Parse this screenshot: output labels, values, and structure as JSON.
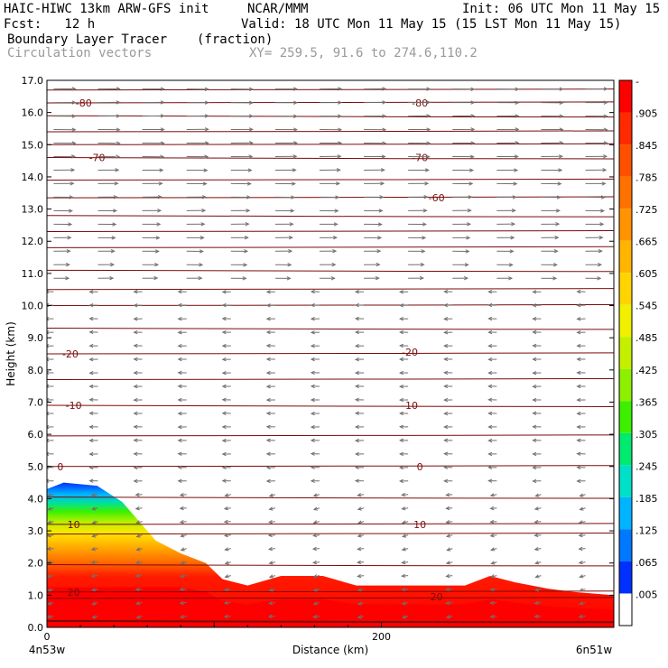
{
  "header": {
    "title_left": "HAIC-HIWC 13km ARW-GFS init",
    "title_center": "NCAR/MMM",
    "init": "Init: 06 UTC Mon 11 May 15",
    "fcst": "Fcst:   12 h",
    "valid": "Valid: 18 UTC Mon 11 May 15 (15 LST Mon 11 May 15)",
    "field_name": "Boundary Layer Tracer",
    "field_units": "(fraction)",
    "vector_name": "Circulation vectors",
    "xy": "XY= 259.5, 91.6 to 274.6,110.2"
  },
  "chart_data": {
    "type": "heatmap",
    "xlabel": "Distance (km)",
    "ylabel": "Height (km)",
    "xlim": [
      0,
      339
    ],
    "ylim": [
      0,
      17
    ],
    "x_ticks": [
      "0",
      "200"
    ],
    "y_ticks": [
      "0.0",
      "1.0",
      "2.0",
      "3.0",
      "4.0",
      "5.0",
      "6.0",
      "7.0",
      "8.0",
      "9.0",
      "10.0",
      "11.0",
      "12.0",
      "13.0",
      "14.0",
      "15.0",
      "16.0",
      "17.0"
    ],
    "x_endpoints": [
      "4n53w",
      "6n51w"
    ],
    "colorbar": {
      "labels": [
        "-",
        ".905",
        ".845",
        ".785",
        ".725",
        ".665",
        ".605",
        ".545",
        ".485",
        ".425",
        ".365",
        ".305",
        ".245",
        ".185",
        ".125",
        ".065",
        ".005"
      ],
      "colors": [
        "#ff0000",
        "#ff2a00",
        "#ff5000",
        "#ff7200",
        "#ff9400",
        "#ffb400",
        "#ffd400",
        "#f0f000",
        "#c4f000",
        "#8cf000",
        "#3cf000",
        "#00ea70",
        "#00e0c8",
        "#00b4ff",
        "#0078ff",
        "#0030ff",
        "#ffffff"
      ]
    },
    "tracer_top_km": [
      {
        "x": 0,
        "top": 4.3
      },
      {
        "x": 10,
        "top": 4.5
      },
      {
        "x": 30,
        "top": 4.4
      },
      {
        "x": 45,
        "top": 3.9
      },
      {
        "x": 55,
        "top": 3.3
      },
      {
        "x": 65,
        "top": 2.7
      },
      {
        "x": 80,
        "top": 2.3
      },
      {
        "x": 95,
        "top": 2.0
      },
      {
        "x": 105,
        "top": 1.5
      },
      {
        "x": 120,
        "top": 1.3
      },
      {
        "x": 140,
        "top": 1.6
      },
      {
        "x": 165,
        "top": 1.6
      },
      {
        "x": 185,
        "top": 1.3
      },
      {
        "x": 250,
        "top": 1.3
      },
      {
        "x": 265,
        "top": 1.6
      },
      {
        "x": 280,
        "top": 1.4
      },
      {
        "x": 300,
        "top": 1.2
      },
      {
        "x": 315,
        "top": 1.1
      },
      {
        "x": 339,
        "top": 1.0
      }
    ],
    "temperature_labels": [
      {
        "x": 22,
        "y": 16.3,
        "label": "-80"
      },
      {
        "x": 223,
        "y": 16.3,
        "label": "-80"
      },
      {
        "x": 30,
        "y": 14.6,
        "label": "-70"
      },
      {
        "x": 223,
        "y": 14.6,
        "label": "-70"
      },
      {
        "x": 233,
        "y": 13.35,
        "label": "-60"
      },
      {
        "x": 14,
        "y": 8.5,
        "label": "-20"
      },
      {
        "x": 217,
        "y": 8.55,
        "label": "-20"
      },
      {
        "x": 16,
        "y": 6.9,
        "label": "-10"
      },
      {
        "x": 217,
        "y": 6.9,
        "label": "-10"
      },
      {
        "x": 8,
        "y": 5.0,
        "label": "0"
      },
      {
        "x": 223,
        "y": 5.0,
        "label": "0"
      },
      {
        "x": 16,
        "y": 3.2,
        "label": "10"
      },
      {
        "x": 223,
        "y": 3.2,
        "label": "10"
      },
      {
        "x": 16,
        "y": 1.1,
        "label": "20"
      },
      {
        "x": 233,
        "y": 0.95,
        "label": "20"
      }
    ]
  }
}
